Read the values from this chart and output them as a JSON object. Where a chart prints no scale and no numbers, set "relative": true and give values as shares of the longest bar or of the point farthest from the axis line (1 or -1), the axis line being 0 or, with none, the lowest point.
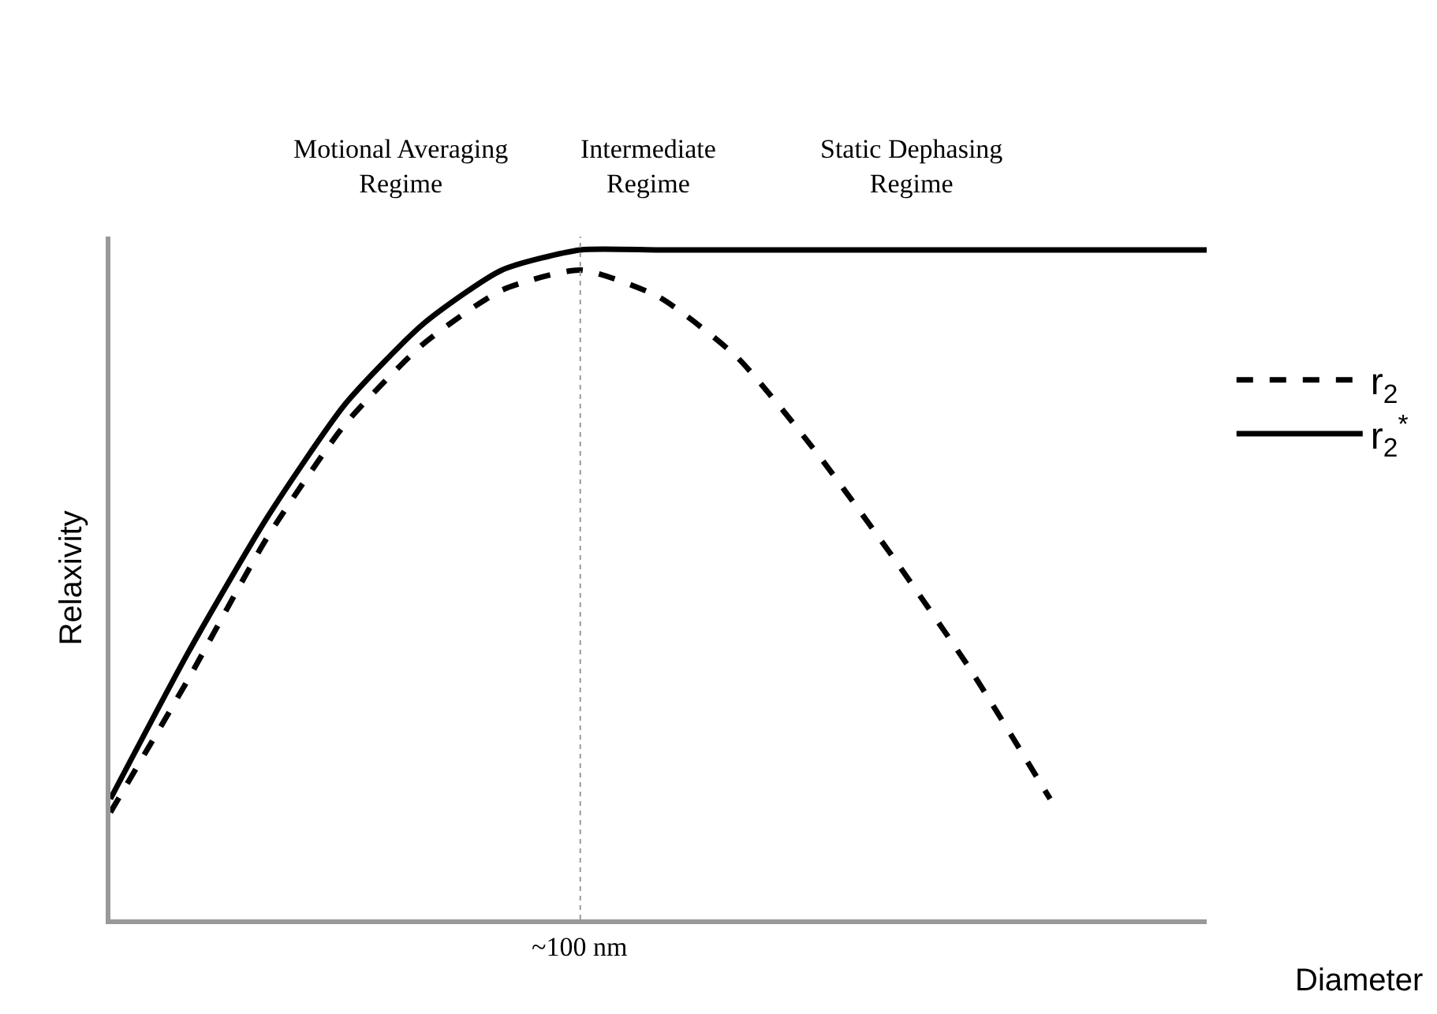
{
  "chart_data": {
    "type": "line",
    "relative": true,
    "xlabel": "Diameter",
    "ylabel": "Relaxivity",
    "categories": [
      null,
      null,
      null,
      null,
      null,
      null,
      null,
      null,
      null,
      null,
      null,
      null,
      null,
      null,
      null
    ],
    "series": [
      {
        "name": "r$_{2}$",
        "color": "#000000",
        "line_style": "dashed",
        "values": [
          0.16,
          0.36,
          0.57,
          0.74,
          0.86,
          0.94,
          0.97,
          0.93,
          0.84,
          0.7,
          0.54,
          0.37,
          0.18,
          null,
          null
        ]
      },
      {
        "name": "r$_{2}$$^{*}$",
        "color": "#000000",
        "line_style": "solid",
        "values": [
          0.18,
          0.4,
          0.6,
          0.77,
          0.89,
          0.97,
          1.0,
          1.0,
          1.0,
          1.0,
          1.0,
          1.0,
          1.0,
          1.0,
          1.0
        ]
      }
    ],
    "annotations": [
      "Motional Averaging Regime",
      "Intermediate Regime",
      "Static Dephasing Regime",
      "~100 nm"
    ],
    "legend": "right",
    "grid": false,
    "marker": "none"
  }
}
